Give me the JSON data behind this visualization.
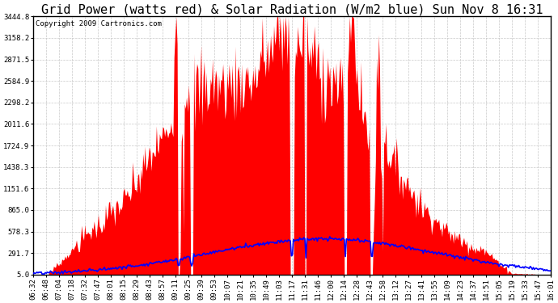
{
  "title": "Grid Power (watts red) & Solar Radiation (W/m2 blue) Sun Nov 8 16:31",
  "copyright_text": "Copyright 2009 Cartronics.com",
  "yticks": [
    5.0,
    291.7,
    578.3,
    865.0,
    1151.6,
    1438.3,
    1724.9,
    2011.6,
    2298.2,
    2584.9,
    2871.5,
    3158.2,
    3444.8
  ],
  "ymin": 5.0,
  "ymax": 3444.8,
  "bg_color": "#ffffff",
  "grid_color": "#bbbbbb",
  "red_fill_color": "red",
  "blue_line_color": "blue",
  "title_fontsize": 11,
  "copyright_fontsize": 6.5,
  "tick_label_fontsize": 6.5,
  "xtick_labels": [
    "06:32",
    "06:48",
    "07:04",
    "07:18",
    "07:32",
    "07:47",
    "08:01",
    "08:15",
    "08:29",
    "08:43",
    "08:57",
    "09:11",
    "09:25",
    "09:39",
    "09:53",
    "10:07",
    "10:21",
    "10:35",
    "10:49",
    "11:03",
    "11:17",
    "11:31",
    "11:46",
    "12:00",
    "12:14",
    "12:28",
    "12:43",
    "12:58",
    "13:12",
    "13:27",
    "13:41",
    "13:55",
    "14:09",
    "14:23",
    "14:37",
    "14:51",
    "15:05",
    "15:19",
    "15:33",
    "15:47",
    "16:01"
  ]
}
